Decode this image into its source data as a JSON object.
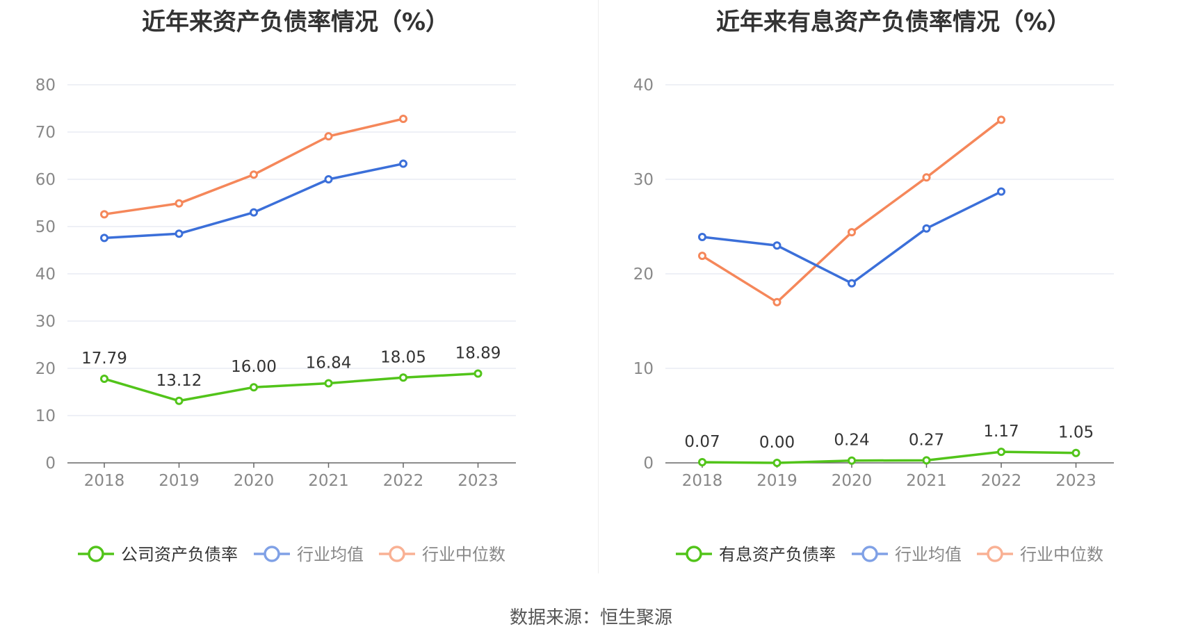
{
  "footer": {
    "source": "数据来源：恒生聚源"
  },
  "chart_data": [
    {
      "type": "line",
      "title": "近年来资产负债率情况（%）",
      "x": [
        "2018",
        "2019",
        "2020",
        "2021",
        "2022",
        "2023"
      ],
      "ylim": [
        0,
        80
      ],
      "yticks": [
        0,
        10,
        20,
        30,
        40,
        50,
        60,
        70,
        80
      ],
      "grid": true,
      "legend_position": "bottom",
      "series": [
        {
          "name": "公司资产负债率",
          "color": "#52c41a",
          "values": [
            17.79,
            13.12,
            16.0,
            16.84,
            18.05,
            18.89
          ],
          "labels": [
            "17.79",
            "13.12",
            "16.00",
            "16.84",
            "18.05",
            "18.89"
          ]
        },
        {
          "name": "行业均值",
          "color": "#3b6fd9",
          "values": [
            47.6,
            48.5,
            53.0,
            60.0,
            63.3,
            null
          ]
        },
        {
          "name": "行业中位数",
          "color": "#f5875a",
          "values": [
            52.6,
            54.9,
            61.0,
            69.1,
            72.8,
            null
          ]
        }
      ]
    },
    {
      "type": "line",
      "title": "近年来有息资产负债率情况（%）",
      "x": [
        "2018",
        "2019",
        "2020",
        "2021",
        "2022",
        "2023"
      ],
      "ylim": [
        0,
        40
      ],
      "yticks": [
        0,
        10,
        20,
        30,
        40
      ],
      "grid": true,
      "legend_position": "bottom",
      "series": [
        {
          "name": "有息资产负债率",
          "color": "#52c41a",
          "values": [
            0.07,
            0.0,
            0.24,
            0.27,
            1.17,
            1.05
          ],
          "labels": [
            "0.07",
            "0.00",
            "0.24",
            "0.27",
            "1.17",
            "1.05"
          ]
        },
        {
          "name": "行业均值",
          "color": "#3b6fd9",
          "values": [
            23.9,
            23.0,
            19.0,
            24.8,
            28.7,
            null
          ]
        },
        {
          "name": "行业中位数",
          "color": "#f5875a",
          "values": [
            21.9,
            17.0,
            24.4,
            30.2,
            36.3,
            null
          ]
        }
      ]
    }
  ]
}
